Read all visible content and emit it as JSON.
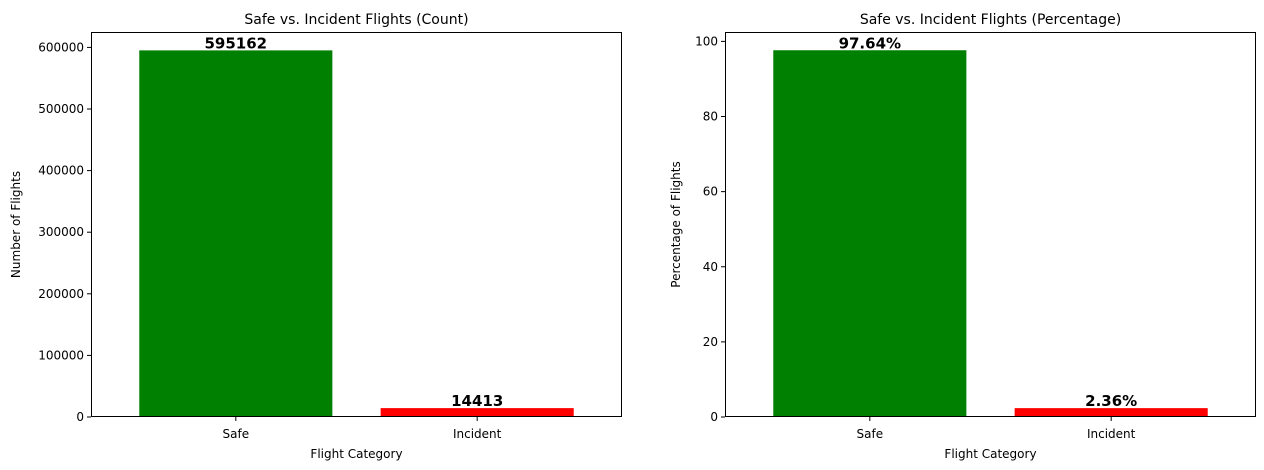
{
  "chart_data": [
    {
      "type": "bar",
      "title": "Safe vs. Incident Flights (Count)",
      "xlabel": "Flight Category",
      "ylabel": "Number of Flights",
      "categories": [
        "Safe",
        "Incident"
      ],
      "values": [
        595162,
        14413
      ],
      "data_labels": [
        "595162",
        "14413"
      ],
      "colors": [
        "#008000",
        "#ff0000"
      ],
      "ylim": [
        0,
        625000
      ],
      "yticks": [
        0,
        100000,
        200000,
        300000,
        400000,
        500000,
        600000
      ],
      "ytick_labels": [
        "0",
        "100000",
        "200000",
        "300000",
        "400000",
        "500000",
        "600000"
      ],
      "grid": false
    },
    {
      "type": "bar",
      "title": "Safe vs. Incident Flights (Percentage)",
      "xlabel": "Flight Category",
      "ylabel": "Percentage of Flights",
      "categories": [
        "Safe",
        "Incident"
      ],
      "values": [
        97.64,
        2.36
      ],
      "data_labels": [
        "97.64%",
        "2.36%"
      ],
      "colors": [
        "#008000",
        "#ff0000"
      ],
      "ylim": [
        0,
        102.5
      ],
      "yticks": [
        0,
        20,
        40,
        60,
        80,
        100
      ],
      "ytick_labels": [
        "0",
        "20",
        "40",
        "60",
        "80",
        "100"
      ],
      "grid": false
    }
  ]
}
